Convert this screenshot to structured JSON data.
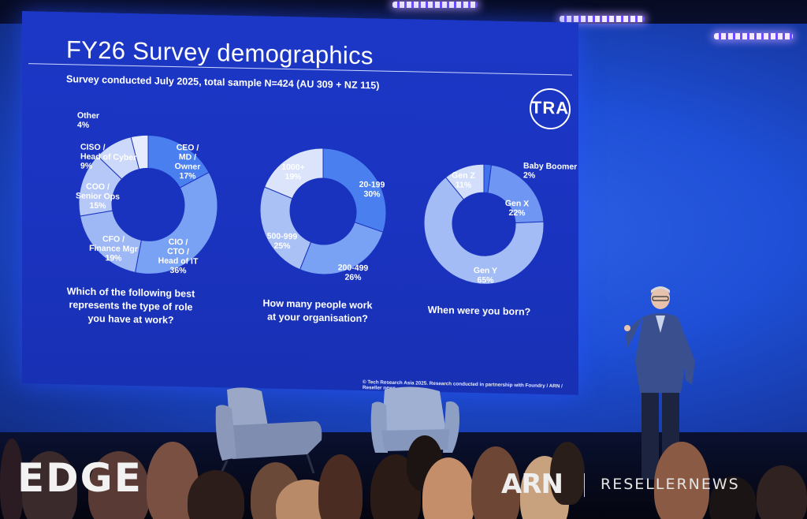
{
  "slide": {
    "title": "FY26 Survey demographics",
    "subtitle": "Survey conducted July 2025, total sample N=424 (AU 309 + NZ 115)",
    "logo_text": "TRA",
    "copyright": "© Tech Research Asia 2025.  Research conducted in partnership with Foundry / ARN / Reseller news."
  },
  "chart_data": [
    {
      "type": "pie",
      "title": "Which of the following best represents the type of role you have at work?",
      "categories": [
        "CEO / MD / Owner",
        "CIO / CTO / Head of IT",
        "CFO / Finance Mgr",
        "COO / Senior Ops",
        "CISO / Head of Cyber",
        "Other"
      ],
      "values": [
        17,
        36,
        19,
        15,
        9,
        4
      ],
      "labels": [
        "17%",
        "36%",
        "19%",
        "15%",
        "9%",
        "4%"
      ],
      "colors": [
        "#4a7ff0",
        "#7aa2f4",
        "#9db8f5",
        "#b6c8f7",
        "#cdd9fa",
        "#e6ecfd"
      ]
    },
    {
      "type": "pie",
      "title": "How many people work at your organisation?",
      "categories": [
        "20-199",
        "200-499",
        "500-999",
        "1000+"
      ],
      "values": [
        30,
        26,
        25,
        19
      ],
      "labels": [
        "30%",
        "26%",
        "25%",
        "19%"
      ],
      "colors": [
        "#4a7ff0",
        "#7aa2f4",
        "#aac1f6",
        "#dbe4fb"
      ]
    },
    {
      "type": "pie",
      "title": "When were you born?",
      "categories": [
        "Baby Boomer",
        "Gen X",
        "Gen Y",
        "Gen Z"
      ],
      "values": [
        2,
        22,
        65,
        11
      ],
      "labels": [
        "2%",
        "22%",
        "65%",
        "11%"
      ],
      "colors": [
        "#3f73ec",
        "#6e96f2",
        "#a3bcf6",
        "#d3defa"
      ]
    }
  ],
  "overlays": {
    "edge_logo": "EDGE",
    "arn_logo": "ARN",
    "reseller_logo": "RESELLERNEWS"
  }
}
